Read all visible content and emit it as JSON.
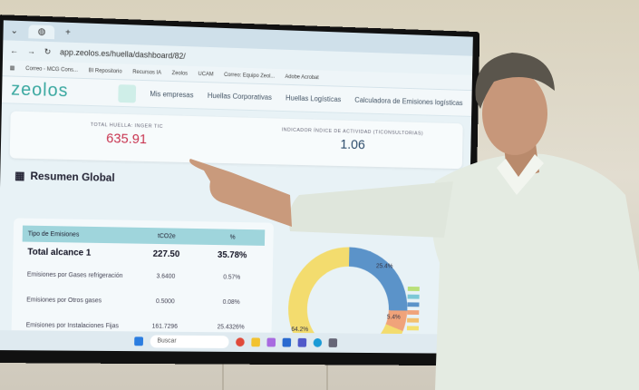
{
  "browser": {
    "url": "app.zeolos.es/huella/dashboard/82/",
    "bookmarks": [
      "Correo - MCG Cons...",
      "BI Repositorio",
      "Recursos IA",
      "Zeolos",
      "UCAM",
      "Correo: Equipo Zeol...",
      "Adobe Acrobat"
    ]
  },
  "app": {
    "logo": "zeolos",
    "nav": [
      "Mis empresas",
      "Huellas Corporativas",
      "Huellas Logísticas",
      "Calculadora de Emisiones logísticas"
    ]
  },
  "kpis": [
    {
      "label": "TOTAL HUELLA: INGER TIC",
      "value": "635.91",
      "color": "#c8334f"
    },
    {
      "label": "INDICADOR ÍNDICE DE ACTIVIDAD (TICONSULTORIAS)",
      "value": "1.06",
      "color": "#2a4a6a"
    }
  ],
  "section_title": "Resumen Global",
  "table": {
    "headers": [
      "Tipo de Emisiones",
      "tCO2e",
      "%"
    ],
    "rows": [
      [
        "Total alcance 1",
        "227.50",
        "35.78%"
      ],
      [
        "Emisiones por Gases refrigeración",
        "3.6400",
        "0.57%"
      ],
      [
        "Emisiones por Otros gases",
        "0.5000",
        "0.08%"
      ],
      [
        "Emisiones por Instalaciones Fijas",
        "161.7296",
        "25.4326%"
      ]
    ]
  },
  "donut": {
    "labels": [
      "25.4%",
      "5.4%",
      "64.2%"
    ]
  },
  "taskbar": {
    "search": "Buscar"
  }
}
